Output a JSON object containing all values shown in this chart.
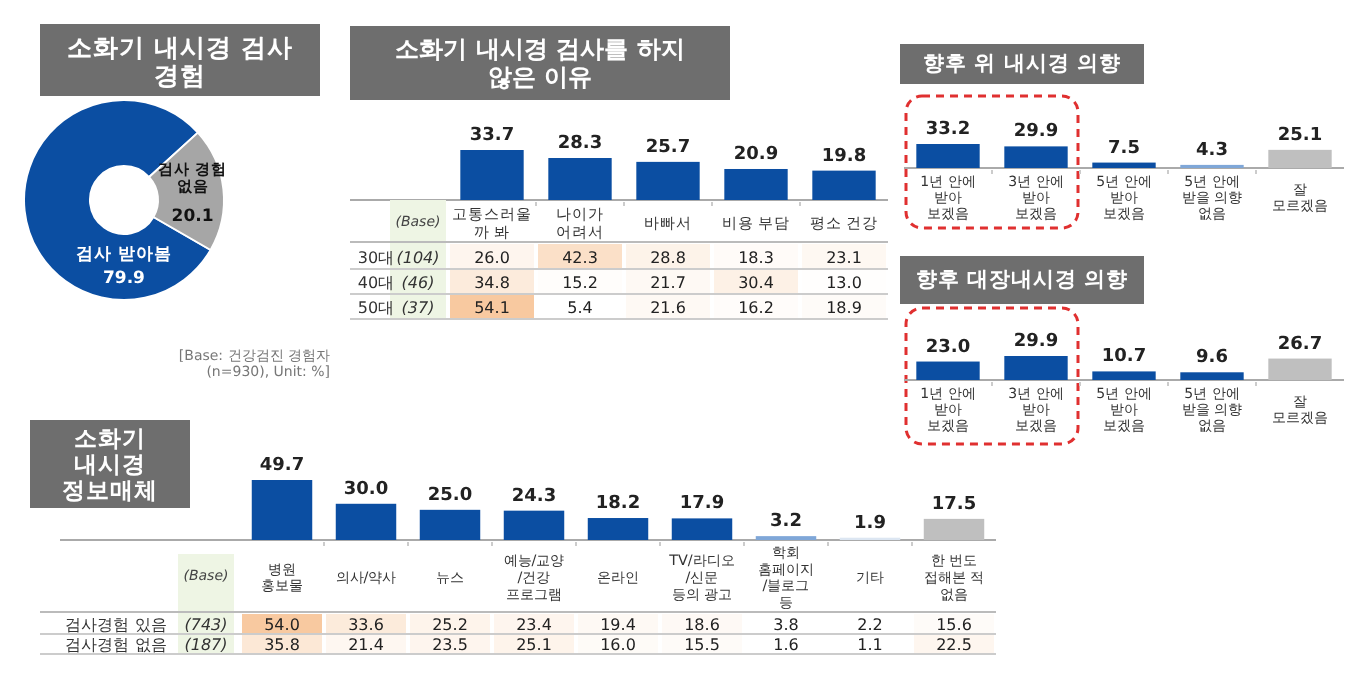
{
  "chart_data": [
    {
      "type": "donut",
      "title": "소화기 내시경 검사 경험",
      "categories": [
        "검사 받아봄",
        "검사 경험 없음"
      ],
      "values": [
        79.9,
        20.1
      ],
      "colors": [
        "#0b4ea2",
        "#a6a6a6"
      ],
      "data_labels": true,
      "annotations": [
        "[Base: 건강검진 경험자 (n=930), Unit: %]"
      ]
    },
    {
      "type": "bar",
      "title": "소화기 내시경 검사를 하지 않은 이유",
      "categories": [
        "고통스러울까 봐",
        "나이가 어려서",
        "바빠서",
        "비용 부담",
        "평소 건강"
      ],
      "values": [
        33.7,
        28.3,
        25.7,
        20.9,
        19.8
      ],
      "color": "#0b4ea2",
      "data_labels": true
    },
    {
      "type": "heatmap",
      "ylabel": "(Base)",
      "categories": [
        null,
        null,
        null,
        null,
        null
      ],
      "y_categories": [
        "30대",
        "40대",
        "50대"
      ],
      "y2_categories": [
        "(104)",
        "(46)",
        "(37)"
      ],
      "cells": [
        [
          26.0,
          42.3,
          28.8,
          18.3,
          23.1
        ],
        [
          34.8,
          15.2,
          21.7,
          30.4,
          13.0
        ],
        [
          54.1,
          5.4,
          21.6,
          16.2,
          18.9
        ]
      ],
      "cell_labels": [
        [
          "26.0",
          "42.3",
          "28.8",
          "18.3",
          "23.1"
        ],
        [
          "34.8",
          "15.2",
          "21.7",
          "30.4",
          "13.0"
        ],
        [
          "54.1",
          "5.4",
          "21.6",
          "16.2",
          "18.9"
        ]
      ]
    },
    {
      "type": "bar",
      "title": "향후 위 내시경 의향",
      "categories": [
        "1년 안에 받아 보겠음",
        "3년 안에 받아 보겠음",
        "5년 안에 받아 보겠음",
        "5년 안에 받을 의향 없음",
        "잘 모르겠음"
      ],
      "values": [
        33.2,
        29.9,
        7.5,
        4.3,
        25.1
      ],
      "colors": [
        "#0b4ea2",
        "#0b4ea2",
        "#0b4ea2",
        "#7fa7d8",
        "#bfbfbf"
      ],
      "value_labels": [
        "33.2",
        "29.9",
        "7.5",
        "4.3",
        "25.1"
      ]
    },
    {
      "type": "bar",
      "title": "향후 대장내시경 의향",
      "categories": [
        "1년 안에 받아 보겠음",
        "3년 안에 받아 보겠음",
        "5년 안에 받아 보겠음",
        "5년 안에 받을 의향 없음",
        "잘 모르겠음"
      ],
      "values": [
        23.0,
        29.9,
        10.7,
        9.6,
        26.7
      ],
      "colors": [
        "#0b4ea2",
        "#0b4ea2",
        "#0b4ea2",
        "#0b4ea2",
        "#bfbfbf"
      ],
      "value_labels": [
        "23.0",
        "29.9",
        "10.7",
        "9.6",
        "26.7"
      ]
    },
    {
      "type": "bar",
      "title": "소화기 내시경 정보매체",
      "categories": [
        "병원 홍보물",
        "의사/약사",
        "뉴스",
        "예능/교양/건강 프로그램",
        "온라인",
        "TV/라디오/신문 등의 광고",
        "학회 홈페이지 /블로그 등",
        "기타",
        "한 번도 접해본 적 없음"
      ],
      "values": [
        49.7,
        30.0,
        25.0,
        24.3,
        18.2,
        17.9,
        3.2,
        1.9,
        17.5
      ],
      "colors": [
        "#0b4ea2",
        "#0b4ea2",
        "#0b4ea2",
        "#0b4ea2",
        "#0b4ea2",
        "#0b4ea2",
        "#7fa7d8",
        "#dce6f2",
        "#bfbfbf"
      ],
      "value_labels": [
        "49.7",
        "30.0",
        "25.0",
        "24.3",
        "18.2",
        "17.9",
        "3.2",
        "1.9",
        "17.5"
      ]
    },
    {
      "type": "heatmap",
      "ylabel": "(Base)",
      "categories": [
        null,
        null,
        null,
        null,
        null,
        null,
        null,
        null,
        null
      ],
      "y_categories": [
        "검사경험 있음",
        "검사경험 없음"
      ],
      "y2_categories": [
        "(743)",
        "(187)"
      ],
      "cells": [
        [
          54.0,
          33.6,
          25.2,
          23.4,
          19.4,
          18.6,
          3.8,
          2.2,
          15.6
        ],
        [
          35.8,
          21.4,
          23.5,
          25.1,
          16.0,
          15.5,
          1.6,
          1.1,
          22.5
        ]
      ],
      "cell_labels": [
        [
          "54.0",
          "33.6",
          "25.2",
          "23.4",
          "19.4",
          "18.6",
          "3.8",
          "2.2",
          "15.6"
        ],
        [
          "35.8",
          "21.4",
          "23.5",
          "25.1",
          "16.0",
          "15.5",
          "1.6",
          "1.1",
          "22.5"
        ]
      ]
    }
  ]
}
